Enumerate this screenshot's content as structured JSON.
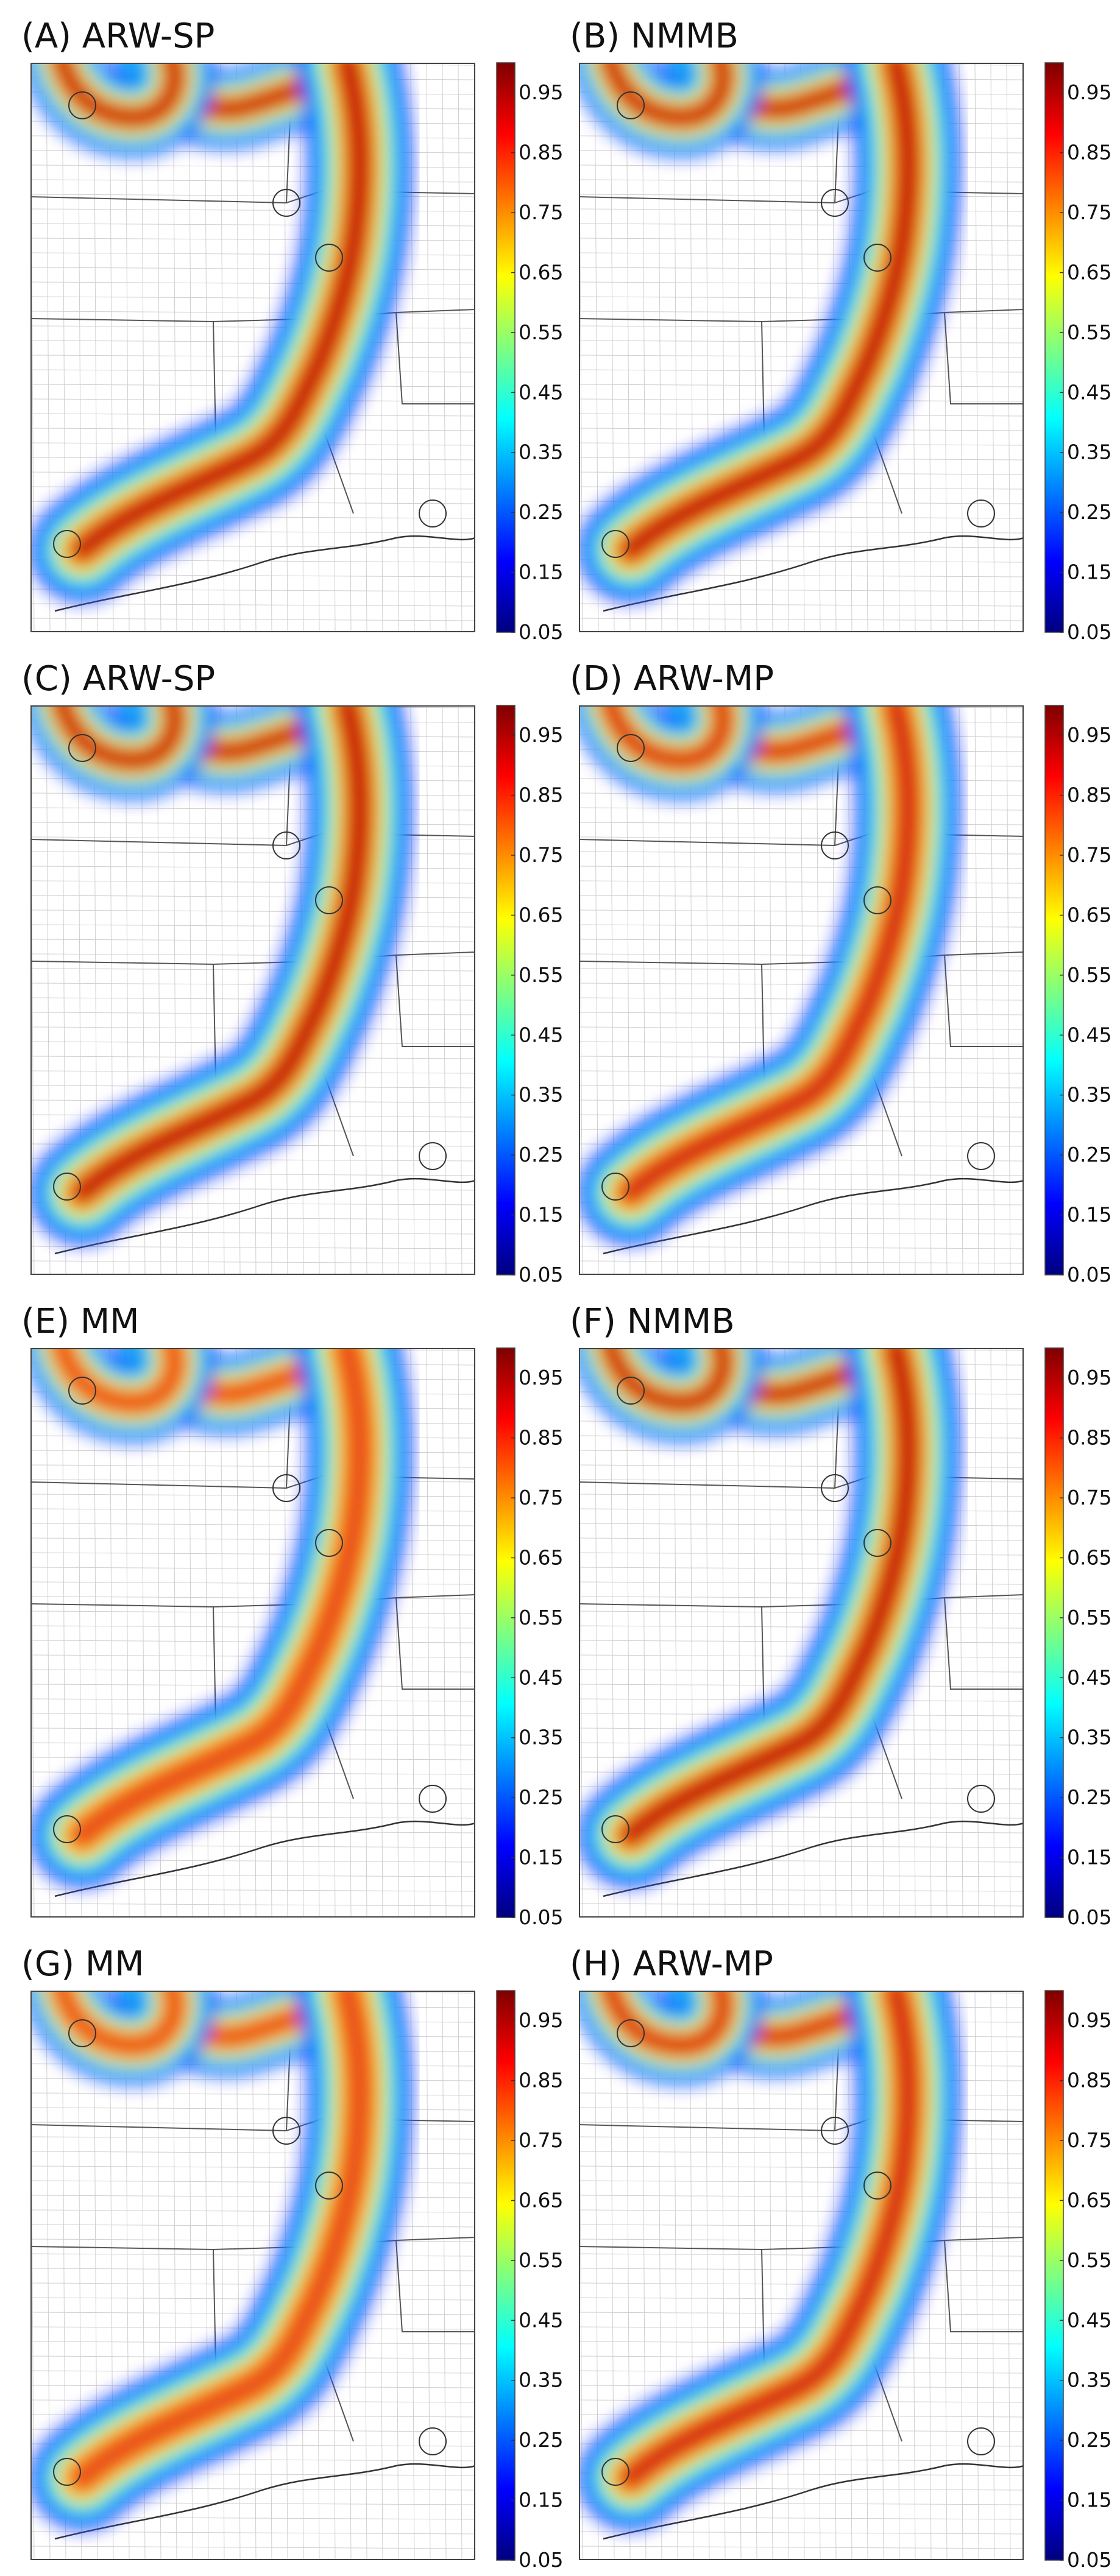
{
  "figure": {
    "colorbar": {
      "labels": [
        "0.95",
        "0.85",
        "0.75",
        "0.65",
        "0.55",
        "0.45",
        "0.35",
        "0.25",
        "0.15",
        "0.05"
      ],
      "range": [
        0.05,
        1.0
      ],
      "colors": [
        "#00007f",
        "#0000ff",
        "#007fff",
        "#00ffff",
        "#7fff7f",
        "#ffff00",
        "#ff7f00",
        "#ff0000",
        "#7f0000"
      ]
    },
    "panels": [
      {
        "label": "(A) ARW-SP",
        "band_color": "#c4150f",
        "north_peak": 0.9
      },
      {
        "label": "(B) NMMB",
        "band_color": "#c4150f",
        "north_peak": 0.95
      },
      {
        "label": "(C) ARW-SP",
        "band_color": "#c4150f",
        "north_peak": 0.85
      },
      {
        "label": "(D) ARW-MP",
        "band_color": "#d52a12",
        "north_peak": 0.85
      },
      {
        "label": "(E) MM",
        "band_color": "#e8501a",
        "north_peak": 0.85
      },
      {
        "label": "(F) NMMB",
        "band_color": "#c4150f",
        "north_peak": 0.9
      },
      {
        "label": "(G) MM",
        "band_color": "#e8501a",
        "north_peak": 0.85
      },
      {
        "label": "(H) ARW-MP",
        "band_color": "#d52a12",
        "north_peak": 0.85
      }
    ]
  }
}
